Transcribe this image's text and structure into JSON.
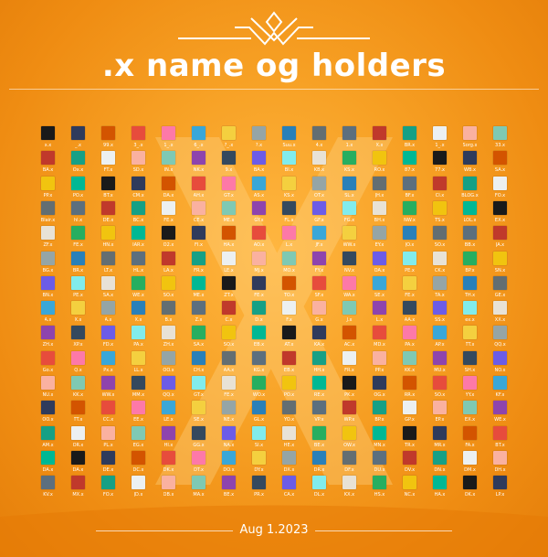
{
  "poster": {
    "title": ".x name og holders",
    "date": "Aug 1.2023",
    "accent": "#f39419"
  },
  "rows": [
    [
      "x.x",
      "_.x",
      "99.x",
      "3_.x",
      "1_.x",
      "6_.x",
      "?_.x",
      "?.x",
      "Suu.x",
      "4.x",
      "1.x",
      "X.x",
      "BR.x",
      "1_.x",
      "Sorg.x",
      "33.x"
    ],
    [
      "BA.x",
      "Ox.x",
      "FT.x",
      "SD.x",
      "IN.x",
      "NK.x",
      "9.x",
      "BA.x",
      "BI.x",
      "KB.x",
      "KS.x",
      "RO.x",
      "87.x",
      "77.x",
      "WB.x",
      "SA.x"
    ],
    [
      "PP.x",
      "PO.x",
      "BT.x",
      "CM.x",
      "DA.x",
      "AH.x",
      "GT.x",
      "AS.x",
      "KS.x",
      "OT.x",
      "SL.x",
      "JH.x",
      "BF.x",
      "CI.x",
      "BLOG.x",
      "FO.x"
    ],
    [
      "Blair.x",
      "hl.x",
      "DE.x",
      "BC.x",
      "FE.x",
      "CE.x",
      "ME.x",
      "GY.x",
      "FL.x",
      "GF.x",
      "FG.x",
      "BH.x",
      "NW.x",
      "TS.x",
      "LOL.x",
      "EX.x"
    ],
    [
      "ZF.x",
      "FE.x",
      "HN.x",
      "IAR.x",
      "O2.x",
      "FI.x",
      "HA.x",
      "AO.x",
      "L.x",
      "JF.x",
      "WW.x",
      "EY.x",
      "JO.x",
      "SO.x",
      "BB.x",
      "JA.x"
    ],
    [
      "BG.x",
      "BR.x",
      "LT.x",
      "HL.x",
      "LA.x",
      "FR.x",
      "LE.x",
      "MJ.x",
      "MO.x",
      "FY.x",
      "NV.x",
      "OA.x",
      "PE.x",
      "CK.x",
      "BP.x",
      "SN.x"
    ],
    [
      "BN.x",
      "PE.x",
      "SA.x",
      "WE.x",
      "SO.x",
      "ME.x",
      "ZT.x",
      "FE.x",
      "TO.x",
      "SF.x",
      "WA.x",
      "SE.x",
      "FE.x",
      "TA.x",
      "TH.x",
      "GE.x"
    ],
    [
      "A.x",
      "X.x",
      "A.x",
      "X.x",
      "B.x",
      "Z.x",
      "C.x",
      "D.x",
      "F.x",
      "G.x",
      "J.x",
      "L.x",
      "AA.x",
      "SS.x",
      "ex.x",
      "XX.x"
    ],
    [
      "ZH.x",
      "XP.x",
      "FD.x",
      "PA.x",
      "ZH.x",
      "SA.x",
      "SO.x",
      "EB.x",
      "AT.x",
      "KA.x",
      "AC.x",
      "MD.x",
      "PA.x",
      "AP.x",
      "TT.x",
      "QQ.x"
    ],
    [
      "Go.x",
      "Q.x",
      "Px.x",
      "LL.x",
      "OO.x",
      "CH.x",
      "AA.x",
      "KG.x",
      "EB.x",
      "HH.x",
      "FR.x",
      "PP.x",
      "KK.x",
      "MU.x",
      "SH.x",
      "NO.x"
    ],
    [
      "NU.x",
      "KK.x",
      "WW.x",
      "MM.x",
      "QQ.x",
      "GT.x",
      "FE.x",
      "WO.x",
      "PO.x",
      "RE.x",
      "PK.x",
      "OG.x",
      "RR.x",
      "SO.x",
      "YY.x",
      "KF.x"
    ],
    [
      "OO.x",
      "TT.x",
      "CC.x",
      "EE.x",
      "LE.x",
      "SE.x",
      "NE.x",
      "GL.x",
      "YO.x",
      "VP.x",
      "WP.x",
      "BP.x",
      "GP.x",
      "EP.x",
      "EX.x",
      "WE.x"
    ],
    [
      "AM.x",
      "OR.x",
      "PL.x",
      "EG.x",
      "HI.x",
      "GG.x",
      "NA.x",
      "SI.x",
      "HE.x",
      "BE.x",
      "OW.x",
      "MN.x",
      "TR.x",
      "MR.x",
      "FA.x",
      "BT.x"
    ],
    [
      "DA.x",
      "DA.x",
      "DE.x",
      "DC.x",
      "DK.x",
      "DT.x",
      "DO.x",
      "DY.x",
      "DX.x",
      "DR.x",
      "DF.x",
      "DU.x",
      "DV.x",
      "DN.x",
      "DM.x",
      "DH.x"
    ],
    [
      "KV.x",
      "MX.x",
      "FO.x",
      "JD.x",
      "OB.x",
      "MA.x",
      "BE.x",
      "PR.x",
      "CA.x",
      "DL.x",
      "KX.x",
      "HS.x",
      "NC.x",
      "HA.x",
      "OK.x",
      "LP.x"
    ]
  ],
  "avatar_colors": [
    "#1a1a1a",
    "#3aa7d8",
    "#5c6f7e",
    "#7fc9b3",
    "#e8e2d6",
    "#2f3b5c",
    "#f4d03f",
    "#c0392b",
    "#8e44ad",
    "#27ae60",
    "#d35400",
    "#95a5a6",
    "#16a085",
    "#34495e",
    "#f1c40f",
    "#e74c3c",
    "#2980b9",
    "#ecf0f1",
    "#6c5ce7",
    "#00b894",
    "#fd79a8",
    "#636e72",
    "#fab1a0",
    "#81ecec"
  ]
}
